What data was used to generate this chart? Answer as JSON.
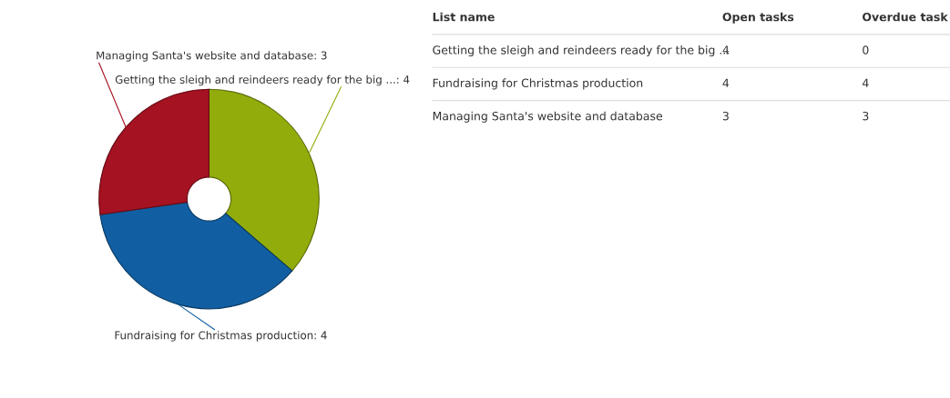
{
  "chart_data": [
    {
      "type": "donut",
      "categories": [
        "Getting the sleigh and reindeers ready for the big ...",
        "Fundraising for Christmas production",
        "Managing Santa's website and database"
      ],
      "values": [
        4,
        4,
        3
      ],
      "colors": [
        "#92ad0b",
        "#115fa2",
        "#a51221"
      ],
      "value_labels": [
        ": 4",
        ": 4",
        ": 3"
      ]
    },
    {
      "type": "other",
      "annotations": [
        "List name",
        "Open tasks",
        "Overdue task",
        "Getting the sleigh and reindeers ready for the big ...",
        "4",
        "0",
        "Fundraising for Christmas production",
        "4",
        "4",
        "Managing Santa's website and database",
        "3",
        "3"
      ]
    }
  ]
}
